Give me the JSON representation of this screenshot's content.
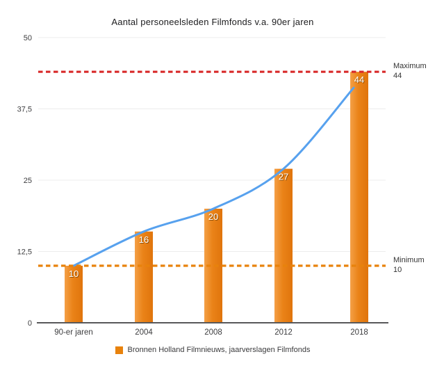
{
  "title": "Aantal personeelsleden Filmfonds v.a. 90er jaren",
  "legend": {
    "label": "Bronnen Holland Filmnieuws, jaarverslagen Filmfonds",
    "swatch_color": "#e8820c"
  },
  "chart_data": {
    "type": "bar",
    "title": "Aantal personeelsleden Filmfonds v.a. 90er jaren",
    "categories": [
      "90-er jaren",
      "2004",
      "2008",
      "2012",
      "2018"
    ],
    "values": [
      10,
      16,
      20,
      27,
      44
    ],
    "series_name": "Bronnen Holland Filmnieuws, jaarverslagen Filmfonds",
    "xlabel": "",
    "ylabel": "",
    "ylim": [
      0,
      50
    ],
    "yticks": [
      0,
      12.5,
      25,
      37.5,
      50
    ],
    "ytick_labels": [
      "0",
      "12,5",
      "25",
      "37,5",
      "50"
    ],
    "grid": true,
    "legend_position": "bottom",
    "bar_gradient": [
      "#f4a047",
      "#ea8318",
      "#e0740c"
    ],
    "trend_line_color": "#57a1ee",
    "gridline_color": "#ececec",
    "axis_color": "#58585a",
    "annotations": [
      {
        "name": "maximum",
        "label": "Maximum",
        "value_label": "44",
        "value": 44,
        "color": "#d92b2b",
        "style": "dashed"
      },
      {
        "name": "minimum",
        "label": "Minimum",
        "value_label": "10",
        "value": 10,
        "color": "#e8820c",
        "style": "dashed"
      }
    ]
  }
}
